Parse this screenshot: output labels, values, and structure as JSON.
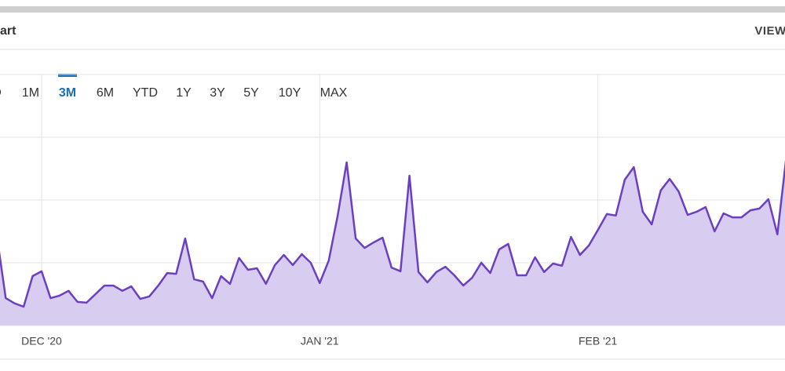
{
  "header": {
    "title": "art",
    "action": "VIEW F"
  },
  "range_buttons": {
    "items": [
      "D",
      "1M",
      "3M",
      "6M",
      "YTD",
      "1Y",
      "3Y",
      "5Y",
      "10Y",
      "MAX"
    ],
    "active": "3M"
  },
  "chart_data": {
    "type": "area",
    "color": "#6c3fc2",
    "fill": "#d9ccf1",
    "grid": true,
    "ylim": [
      0,
      100
    ],
    "yticks": [
      0,
      25,
      50,
      75,
      100
    ],
    "categories": [
      null,
      null,
      null,
      null,
      null,
      "DEC '20",
      null,
      null,
      null,
      null,
      null,
      null,
      null,
      null,
      null,
      null,
      null,
      null,
      null,
      null,
      null,
      null,
      null,
      null,
      null,
      null,
      null,
      null,
      null,
      null,
      null,
      null,
      null,
      null,
      null,
      null,
      "JAN '21",
      null,
      null,
      null,
      null,
      null,
      null,
      null,
      null,
      null,
      null,
      null,
      null,
      null,
      null,
      null,
      null,
      null,
      null,
      null,
      null,
      null,
      null,
      null,
      null,
      null,
      null,
      null,
      null,
      null,
      null,
      "FEB '21",
      null,
      null,
      null,
      null,
      null,
      null,
      null,
      null,
      null,
      null,
      null,
      null,
      null,
      null,
      null,
      null,
      null,
      null,
      null,
      null,
      null
    ],
    "values": [
      35.9,
      10.9,
      8.8,
      7.5,
      19.7,
      21.6,
      10.9,
      11.9,
      13.8,
      9.4,
      9.1,
      12.5,
      15.9,
      15.9,
      13.8,
      15.6,
      10.6,
      11.6,
      15.9,
      20.9,
      20.6,
      34.7,
      18.4,
      17.5,
      10.9,
      19.7,
      16.6,
      26.9,
      22.2,
      22.8,
      16.6,
      24.1,
      28.1,
      24.1,
      28.4,
      25.0,
      16.9,
      25.9,
      43.8,
      65.0,
      34.7,
      30.9,
      33.1,
      35.0,
      23.1,
      21.6,
      59.7,
      21.3,
      17.2,
      21.3,
      23.4,
      20.0,
      15.9,
      19.1,
      25.0,
      20.9,
      30.3,
      32.5,
      20.0,
      20.0,
      27.2,
      21.3,
      24.7,
      23.8,
      35.3,
      28.1,
      31.9,
      38.1,
      44.4,
      43.8,
      58.1,
      63.1,
      45.3,
      40.3,
      53.8,
      58.4,
      53.4,
      44.1,
      45.3,
      47.2,
      37.5,
      44.7,
      43.1,
      43.1,
      45.9,
      46.6,
      50.3,
      36.3,
      67.2
    ]
  }
}
